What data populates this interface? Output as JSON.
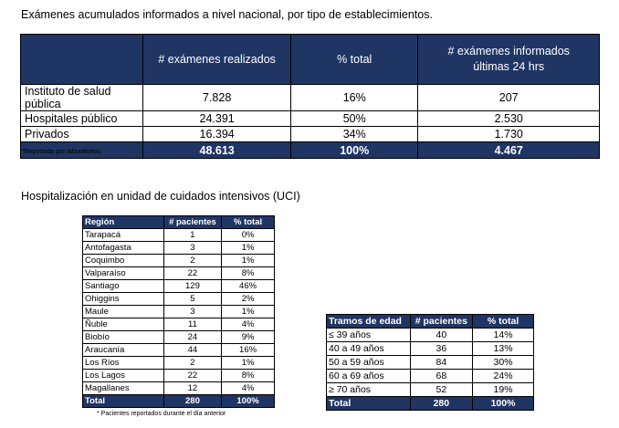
{
  "section1": {
    "title": "Exámenes acumulados informados a nivel nacional, por tipo de establecimientos.",
    "headers": [
      "",
      "# exámenes realizados",
      "% total",
      "# exámenes informados últimas 24 hrs"
    ],
    "rows": [
      [
        "Instituto de salud pública",
        "7.828",
        "16%",
        "207"
      ],
      [
        "Hospitales público",
        "24.391",
        "50%",
        "2.530"
      ],
      [
        "Privados",
        "16.394",
        "34%",
        "1.730"
      ]
    ],
    "total": [
      "",
      "48.613",
      "100%",
      "4.467"
    ],
    "note": "*Reportado por laboratorios"
  },
  "section2": {
    "title": "Hospitalización en unidad de cuidados intensivos (UCI)",
    "headers": [
      "Región",
      "# pacientes",
      "% total"
    ],
    "rows": [
      [
        "Tarapacá",
        "1",
        "0%"
      ],
      [
        "Antofagasta",
        "3",
        "1%"
      ],
      [
        "Coquimbo",
        "2",
        "1%"
      ],
      [
        "Valparaíso",
        "22",
        "8%"
      ],
      [
        "Santiago",
        "129",
        "46%"
      ],
      [
        "Ohiggins",
        "5",
        "2%"
      ],
      [
        "Maule",
        "3",
        "1%"
      ],
      [
        "Ñuble",
        "11",
        "4%"
      ],
      [
        "Biobío",
        "24",
        "9%"
      ],
      [
        "Araucanía",
        "44",
        "16%"
      ],
      [
        "Los Ríos",
        "2",
        "1%"
      ],
      [
        "Los Lagos",
        "22",
        "8%"
      ],
      [
        "Magallanes",
        "12",
        "4%"
      ]
    ],
    "total": [
      "Total",
      "280",
      "100%"
    ],
    "note": "* Pacientes reportados durante el día anterior"
  },
  "section3": {
    "headers": [
      "Tramos de edad",
      "# pacientes",
      "% total"
    ],
    "rows": [
      [
        "≤ 39 años",
        "40",
        "14%"
      ],
      [
        "40 a 49 años",
        "36",
        "13%"
      ],
      [
        "50 a 59 años",
        "84",
        "30%"
      ],
      [
        "60 a 69 años",
        "68",
        "24%"
      ],
      [
        "≥ 70 años",
        "52",
        "19%"
      ]
    ],
    "total": [
      "Total",
      "280",
      "100%"
    ]
  }
}
